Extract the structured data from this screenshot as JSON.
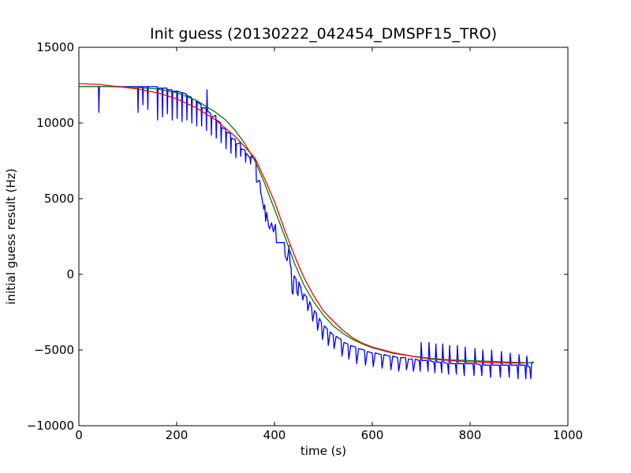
{
  "chart_data": {
    "type": "line",
    "title": "Init guess (20130222_042454_DMSPF15_TRO)",
    "xlabel": "time (s)",
    "ylabel": "initial guess result (Hz)",
    "xlim": [
      0,
      1000
    ],
    "ylim": [
      -10000,
      15000
    ],
    "x_ticks": [
      0,
      200,
      400,
      600,
      800,
      1000
    ],
    "x_tick_labels": [
      "0",
      "200",
      "400",
      "600",
      "800",
      "1000"
    ],
    "y_ticks": [
      -10000,
      -5000,
      0,
      5000,
      10000,
      15000
    ],
    "y_tick_labels": [
      "−10000",
      "−5000",
      "0",
      "5000",
      "10000",
      "15000"
    ],
    "grid": false,
    "legend": "none",
    "series": [
      {
        "color": "#0000ff",
        "step": true,
        "points": [
          [
            0,
            12400
          ],
          [
            40,
            12400
          ],
          [
            41,
            10700
          ],
          [
            42,
            12400
          ],
          [
            120,
            12400
          ],
          [
            121,
            10700
          ],
          [
            122,
            12400
          ],
          [
            130,
            12400
          ],
          [
            131,
            11200
          ],
          [
            132,
            12400
          ],
          [
            140,
            12400
          ],
          [
            141,
            10900
          ],
          [
            142,
            12400
          ],
          [
            160,
            12400
          ],
          [
            161,
            10200
          ],
          [
            162,
            12300
          ],
          [
            170,
            12300
          ],
          [
            171,
            10400
          ],
          [
            172,
            12300
          ],
          [
            180,
            12300
          ],
          [
            181,
            10600
          ],
          [
            182,
            12200
          ],
          [
            190,
            12200
          ],
          [
            191,
            10200
          ],
          [
            192,
            12100
          ],
          [
            200,
            12100
          ],
          [
            201,
            10300
          ],
          [
            202,
            12100
          ],
          [
            210,
            12000
          ],
          [
            211,
            10100
          ],
          [
            212,
            12000
          ],
          [
            220,
            11900
          ],
          [
            221,
            10200
          ],
          [
            222,
            11800
          ],
          [
            230,
            11700
          ],
          [
            231,
            10000
          ],
          [
            232,
            11600
          ],
          [
            240,
            11500
          ],
          [
            241,
            9800
          ],
          [
            242,
            11400
          ],
          [
            250,
            11200
          ],
          [
            251,
            9800
          ],
          [
            252,
            11000
          ],
          [
            260,
            11000
          ],
          [
            261,
            9500
          ],
          [
            262,
            12200
          ],
          [
            263,
            10800
          ],
          [
            270,
            10600
          ],
          [
            271,
            9200
          ],
          [
            272,
            10400
          ],
          [
            280,
            10500
          ],
          [
            281,
            9000
          ],
          [
            282,
            10200
          ],
          [
            290,
            10000
          ],
          [
            291,
            8700
          ],
          [
            292,
            9700
          ],
          [
            300,
            9600
          ],
          [
            301,
            8300
          ],
          [
            302,
            9400
          ],
          [
            310,
            9300
          ],
          [
            311,
            8000
          ],
          [
            312,
            9000
          ],
          [
            320,
            8900
          ],
          [
            321,
            7700
          ],
          [
            322,
            8600
          ],
          [
            330,
            8700
          ],
          [
            331,
            7800
          ],
          [
            332,
            8300
          ],
          [
            340,
            8200
          ],
          [
            341,
            7400
          ],
          [
            342,
            8000
          ],
          [
            350,
            7700
          ],
          [
            351,
            7300
          ],
          [
            352,
            7800
          ],
          [
            362,
            7500
          ],
          [
            363,
            6100
          ],
          [
            366,
            6100
          ],
          [
            367,
            6200
          ],
          [
            370,
            6200
          ],
          [
            372,
            5400
          ],
          [
            374,
            5100
          ],
          [
            378,
            4300
          ],
          [
            380,
            4600
          ],
          [
            382,
            3500
          ],
          [
            384,
            4100
          ],
          [
            388,
            3200
          ],
          [
            390,
            3000
          ],
          [
            394,
            3400
          ],
          [
            398,
            2800
          ],
          [
            402,
            3300
          ],
          [
            404,
            2100
          ],
          [
            420,
            2100
          ],
          [
            422,
            1200
          ],
          [
            426,
            900
          ],
          [
            430,
            1900
          ],
          [
            432,
            700
          ],
          [
            434,
            400
          ],
          [
            436,
            -1200
          ],
          [
            438,
            -1300
          ],
          [
            440,
            -100
          ],
          [
            444,
            -300
          ],
          [
            446,
            -1200
          ],
          [
            448,
            -1400
          ],
          [
            450,
            -500
          ],
          [
            454,
            -900
          ],
          [
            458,
            -1700
          ],
          [
            460,
            -1300
          ],
          [
            466,
            -1500
          ],
          [
            468,
            -2400
          ],
          [
            472,
            -1800
          ],
          [
            476,
            -2200
          ],
          [
            478,
            -3100
          ],
          [
            482,
            -2400
          ],
          [
            486,
            -2600
          ],
          [
            488,
            -3700
          ],
          [
            492,
            -2900
          ],
          [
            496,
            -3200
          ],
          [
            498,
            -4300
          ],
          [
            502,
            -3400
          ],
          [
            508,
            -3600
          ],
          [
            510,
            -4700
          ],
          [
            514,
            -3800
          ],
          [
            520,
            -4000
          ],
          [
            522,
            -4900
          ],
          [
            526,
            -4100
          ],
          [
            536,
            -4300
          ],
          [
            538,
            -5400
          ],
          [
            542,
            -4500
          ],
          [
            550,
            -4600
          ],
          [
            552,
            -5600
          ],
          [
            556,
            -4700
          ],
          [
            566,
            -4800
          ],
          [
            568,
            -5900
          ],
          [
            572,
            -4900
          ],
          [
            584,
            -5000
          ],
          [
            586,
            -6000
          ],
          [
            590,
            -5100
          ],
          [
            600,
            -5200
          ],
          [
            602,
            -6100
          ],
          [
            606,
            -5200
          ],
          [
            618,
            -5300
          ],
          [
            620,
            -6200
          ],
          [
            624,
            -5300
          ],
          [
            636,
            -5400
          ],
          [
            638,
            -6300
          ],
          [
            642,
            -5400
          ],
          [
            652,
            -5500
          ],
          [
            654,
            -6400
          ],
          [
            658,
            -5500
          ],
          [
            668,
            -5500
          ],
          [
            670,
            -6300
          ],
          [
            674,
            -5600
          ],
          [
            682,
            -5600
          ],
          [
            684,
            -6400
          ],
          [
            688,
            -5600
          ],
          [
            696,
            -5700
          ],
          [
            698,
            -6400
          ],
          [
            700,
            -4500
          ],
          [
            702,
            -5700
          ],
          [
            712,
            -5700
          ],
          [
            714,
            -6400
          ],
          [
            716,
            -4500
          ],
          [
            718,
            -5700
          ],
          [
            726,
            -5800
          ],
          [
            728,
            -6500
          ],
          [
            730,
            -4600
          ],
          [
            732,
            -5800
          ],
          [
            740,
            -5800
          ],
          [
            742,
            -6500
          ],
          [
            744,
            -4600
          ],
          [
            746,
            -5800
          ],
          [
            754,
            -5900
          ],
          [
            756,
            -6600
          ],
          [
            758,
            -4700
          ],
          [
            760,
            -5900
          ],
          [
            770,
            -5900
          ],
          [
            772,
            -6600
          ],
          [
            774,
            -4700
          ],
          [
            776,
            -5900
          ],
          [
            786,
            -5900
          ],
          [
            788,
            -6700
          ],
          [
            790,
            -4800
          ],
          [
            792,
            -5900
          ],
          [
            806,
            -5900
          ],
          [
            808,
            -6700
          ],
          [
            810,
            -4900
          ],
          [
            812,
            -5900
          ],
          [
            822,
            -6000
          ],
          [
            824,
            -6700
          ],
          [
            826,
            -5000
          ],
          [
            828,
            -6000
          ],
          [
            840,
            -6000
          ],
          [
            842,
            -6800
          ],
          [
            844,
            -5000
          ],
          [
            846,
            -6000
          ],
          [
            860,
            -6000
          ],
          [
            862,
            -6800
          ],
          [
            864,
            -5100
          ],
          [
            866,
            -6000
          ],
          [
            878,
            -6000
          ],
          [
            880,
            -6800
          ],
          [
            882,
            -5200
          ],
          [
            884,
            -6000
          ],
          [
            896,
            -6000
          ],
          [
            898,
            -6900
          ],
          [
            900,
            -5300
          ],
          [
            902,
            -6000
          ],
          [
            912,
            -6000
          ],
          [
            914,
            -6900
          ],
          [
            916,
            -5400
          ],
          [
            918,
            -6100
          ],
          [
            922,
            -6100
          ],
          [
            924,
            -6900
          ],
          [
            926,
            -5800
          ],
          [
            930,
            -5800
          ]
        ]
      },
      {
        "color": "#008000",
        "step": false,
        "points": [
          [
            0,
            12400
          ],
          [
            60,
            12400
          ],
          [
            120,
            12350
          ],
          [
            160,
            12250
          ],
          [
            200,
            12000
          ],
          [
            240,
            11500
          ],
          [
            280,
            10700
          ],
          [
            300,
            10200
          ],
          [
            320,
            9500
          ],
          [
            340,
            8600
          ],
          [
            360,
            7500
          ],
          [
            380,
            6000
          ],
          [
            400,
            4300
          ],
          [
            420,
            2600
          ],
          [
            440,
            800
          ],
          [
            460,
            -700
          ],
          [
            480,
            -1800
          ],
          [
            500,
            -2700
          ],
          [
            520,
            -3400
          ],
          [
            540,
            -3900
          ],
          [
            560,
            -4300
          ],
          [
            580,
            -4600
          ],
          [
            600,
            -4850
          ],
          [
            640,
            -5200
          ],
          [
            680,
            -5400
          ],
          [
            720,
            -5550
          ],
          [
            760,
            -5650
          ],
          [
            800,
            -5700
          ],
          [
            840,
            -5750
          ],
          [
            880,
            -5800
          ],
          [
            930,
            -5850
          ]
        ]
      },
      {
        "color": "#ff0000",
        "step": false,
        "points": [
          [
            0,
            12600
          ],
          [
            40,
            12550
          ],
          [
            80,
            12400
          ],
          [
            120,
            12250
          ],
          [
            160,
            12000
          ],
          [
            200,
            11600
          ],
          [
            240,
            11000
          ],
          [
            280,
            10200
          ],
          [
            320,
            9100
          ],
          [
            360,
            7700
          ],
          [
            380,
            6300
          ],
          [
            400,
            4800
          ],
          [
            420,
            3000
          ],
          [
            440,
            1300
          ],
          [
            460,
            -200
          ],
          [
            480,
            -1400
          ],
          [
            500,
            -2400
          ],
          [
            520,
            -3100
          ],
          [
            540,
            -3700
          ],
          [
            560,
            -4200
          ],
          [
            580,
            -4550
          ],
          [
            600,
            -4800
          ],
          [
            640,
            -5150
          ],
          [
            680,
            -5400
          ],
          [
            720,
            -5600
          ],
          [
            760,
            -5700
          ],
          [
            800,
            -5780
          ],
          [
            840,
            -5820
          ],
          [
            880,
            -5850
          ],
          [
            910,
            -5860
          ]
        ]
      }
    ]
  }
}
